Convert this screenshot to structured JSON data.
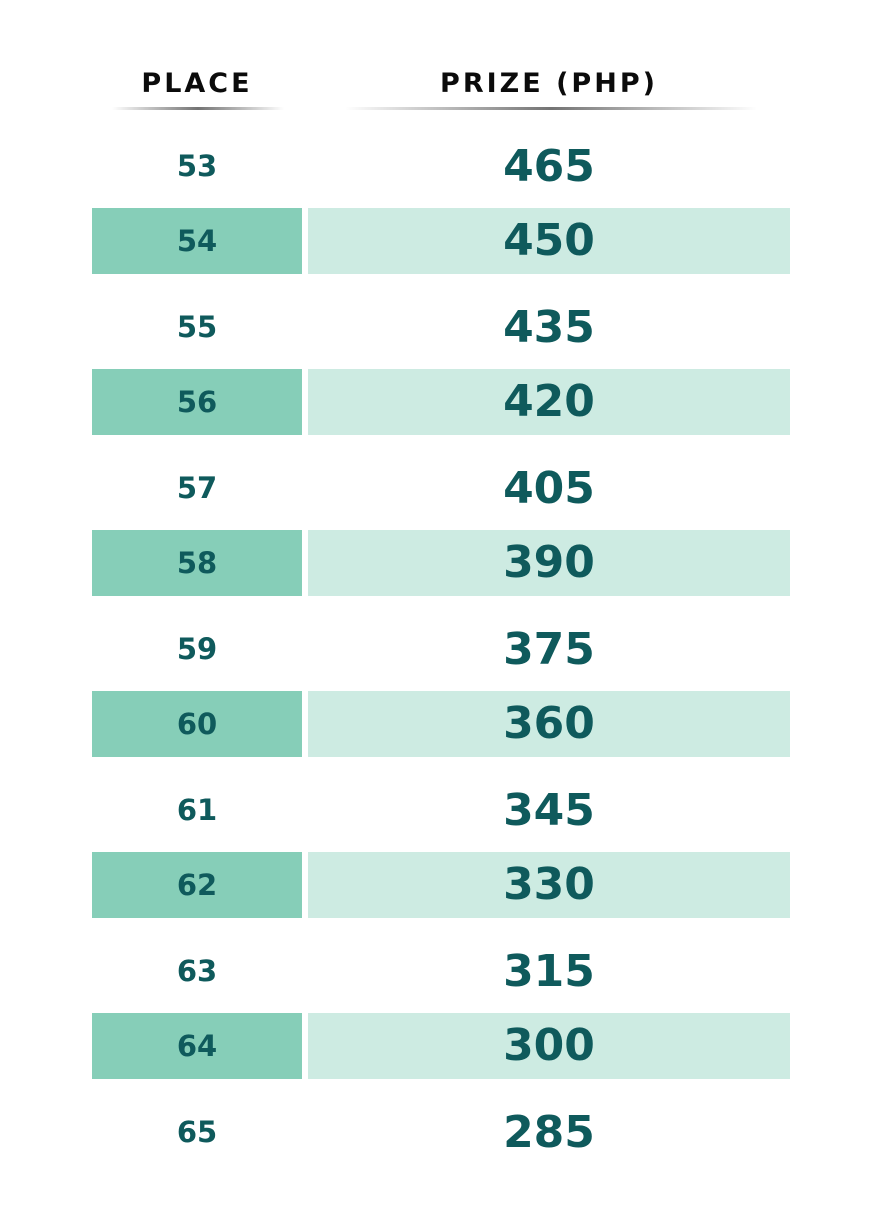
{
  "header": {
    "place_label": "PLACE",
    "prize_label": "PRIZE (PHP)"
  },
  "colors": {
    "text": "#0f5a5c",
    "place_shade": "#86ceb8",
    "prize_shade": "#cdebe2"
  },
  "rows": [
    {
      "place": "53",
      "prize": "465"
    },
    {
      "place": "54",
      "prize": "450"
    },
    {
      "place": "55",
      "prize": "435"
    },
    {
      "place": "56",
      "prize": "420"
    },
    {
      "place": "57",
      "prize": "405"
    },
    {
      "place": "58",
      "prize": "390"
    },
    {
      "place": "59",
      "prize": "375"
    },
    {
      "place": "60",
      "prize": "360"
    },
    {
      "place": "61",
      "prize": "345"
    },
    {
      "place": "62",
      "prize": "330"
    },
    {
      "place": "63",
      "prize": "315"
    },
    {
      "place": "64",
      "prize": "300"
    },
    {
      "place": "65",
      "prize": "285"
    }
  ]
}
